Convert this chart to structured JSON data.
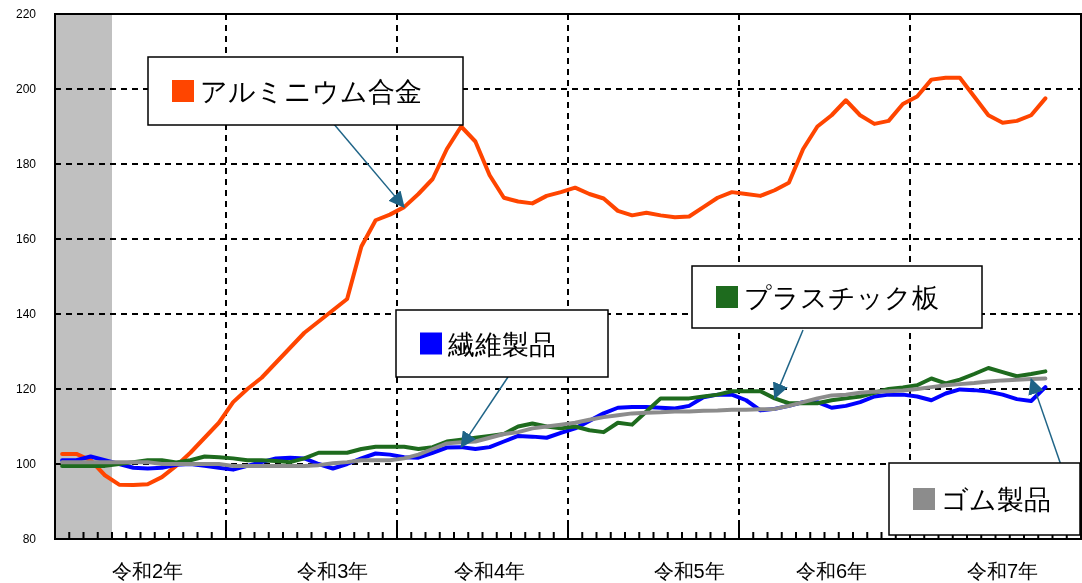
{
  "chart_data": {
    "type": "line",
    "categories": [
      null,
      null,
      null,
      null,
      null,
      null,
      "令和2年",
      null,
      null,
      null,
      null,
      null,
      null,
      null,
      null,
      null,
      null,
      null,
      null,
      "令和3年",
      null,
      null,
      null,
      null,
      null,
      null,
      null,
      null,
      null,
      null,
      "令和4年",
      null,
      null,
      null,
      null,
      null,
      null,
      null,
      null,
      null,
      null,
      null,
      null,
      null,
      "令和5年",
      null,
      null,
      null,
      null,
      null,
      null,
      null,
      null,
      null,
      "令和6年",
      null,
      null,
      null,
      null,
      null,
      null,
      null,
      null,
      null,
      null,
      null,
      "令和7年",
      null,
      null,
      null,
      null,
      null
    ],
    "series": [
      {
        "name": "アルミニウム合金",
        "color": "#ff4500",
        "values": [
          102.7,
          102.7,
          101,
          97,
          94.5,
          94.4,
          94.6,
          96.5,
          99.5,
          103,
          107,
          111,
          116.5,
          120,
          123,
          127,
          131,
          135,
          138,
          141,
          144,
          158,
          165,
          166.5,
          168.5,
          172,
          176,
          184,
          190,
          186,
          177,
          171,
          170,
          169.5,
          171.5,
          172.5,
          173.7,
          172,
          170.8,
          167.5,
          166.3,
          167,
          166.3,
          165.8,
          166,
          168.5,
          171,
          172.5,
          172,
          171.5,
          173,
          175,
          184,
          190,
          193,
          197,
          193,
          190.7,
          191.5,
          196,
          198,
          202.5,
          203,
          203,
          198,
          193,
          191,
          191.5,
          193,
          197.5,
          null,
          null
        ]
      },
      {
        "name": "繊維製品",
        "color": "#0000ff",
        "values": [
          101,
          101,
          102,
          101,
          100,
          99,
          98.8,
          99,
          99.8,
          100,
          99.5,
          99,
          98.5,
          99.5,
          100.5,
          101.5,
          101.7,
          101.5,
          100,
          98.8,
          100,
          101.5,
          102.8,
          102.5,
          101.8,
          101.7,
          103,
          104.4,
          104.5,
          104,
          104.5,
          106,
          107.5,
          107.3,
          107,
          108.3,
          109.5,
          111.5,
          113.5,
          115,
          115.2,
          115.2,
          115,
          114.8,
          115.5,
          117.8,
          118.5,
          118.5,
          117,
          114.3,
          114.7,
          115.5,
          116.5,
          116.5,
          115,
          115.5,
          116.5,
          118,
          118.5,
          118.5,
          118,
          117,
          118.8,
          119.9,
          119.7,
          119.3,
          118.5,
          117.3,
          116.8,
          120.5,
          null,
          null
        ]
      },
      {
        "name": "プラスチック板",
        "color": "#1e6b1e",
        "values": [
          99.5,
          99.5,
          99.5,
          99.5,
          100,
          100.5,
          101,
          101,
          100.4,
          101,
          102,
          101.8,
          101.5,
          101,
          101,
          100.8,
          100.5,
          101.5,
          103,
          103,
          103,
          104,
          104.6,
          104.6,
          104.6,
          104,
          104.5,
          106,
          106.5,
          107,
          107.5,
          108,
          110,
          110.8,
          110,
          109.5,
          110,
          109,
          108.5,
          111,
          110.5,
          114,
          117.5,
          117.5,
          117.5,
          118,
          118.5,
          119.4,
          119.4,
          119.4,
          117.5,
          116.2,
          116.2,
          116.2,
          117,
          117.5,
          118,
          119,
          120,
          120.4,
          121,
          122.8,
          121.5,
          122.5,
          124,
          125.6,
          124.5,
          123.4,
          124,
          124.7,
          null,
          null
        ]
      },
      {
        "name": "ゴム製品",
        "color": "#8c8c8c",
        "values": [
          100.5,
          100.5,
          100.5,
          100.5,
          100.5,
          100.5,
          100.5,
          100,
          100,
          100,
          100,
          100,
          99.5,
          99.5,
          99.5,
          99.5,
          99.5,
          99.5,
          99.7,
          100.2,
          100.5,
          101,
          101,
          101,
          101.5,
          102.5,
          104,
          105.5,
          105.8,
          106,
          107,
          108,
          108.5,
          109.5,
          110,
          110.5,
          111,
          111.8,
          112.5,
          113,
          113.5,
          113.7,
          113.8,
          114,
          114,
          114.2,
          114.3,
          114.5,
          114.5,
          114.6,
          114.7,
          115.5,
          116.5,
          117.5,
          118.3,
          118.5,
          119,
          119.3,
          119.4,
          119.6,
          120,
          120.5,
          121,
          121.3,
          121.6,
          122,
          122.3,
          122.5,
          122.7,
          122.8,
          null,
          null
        ]
      }
    ],
    "ylim": [
      80,
      220
    ],
    "yticks": [
      80,
      100,
      120,
      140,
      160,
      180,
      200,
      220
    ],
    "grid": true,
    "line_style": "solid",
    "marker": "none",
    "legend": "center"
  }
}
